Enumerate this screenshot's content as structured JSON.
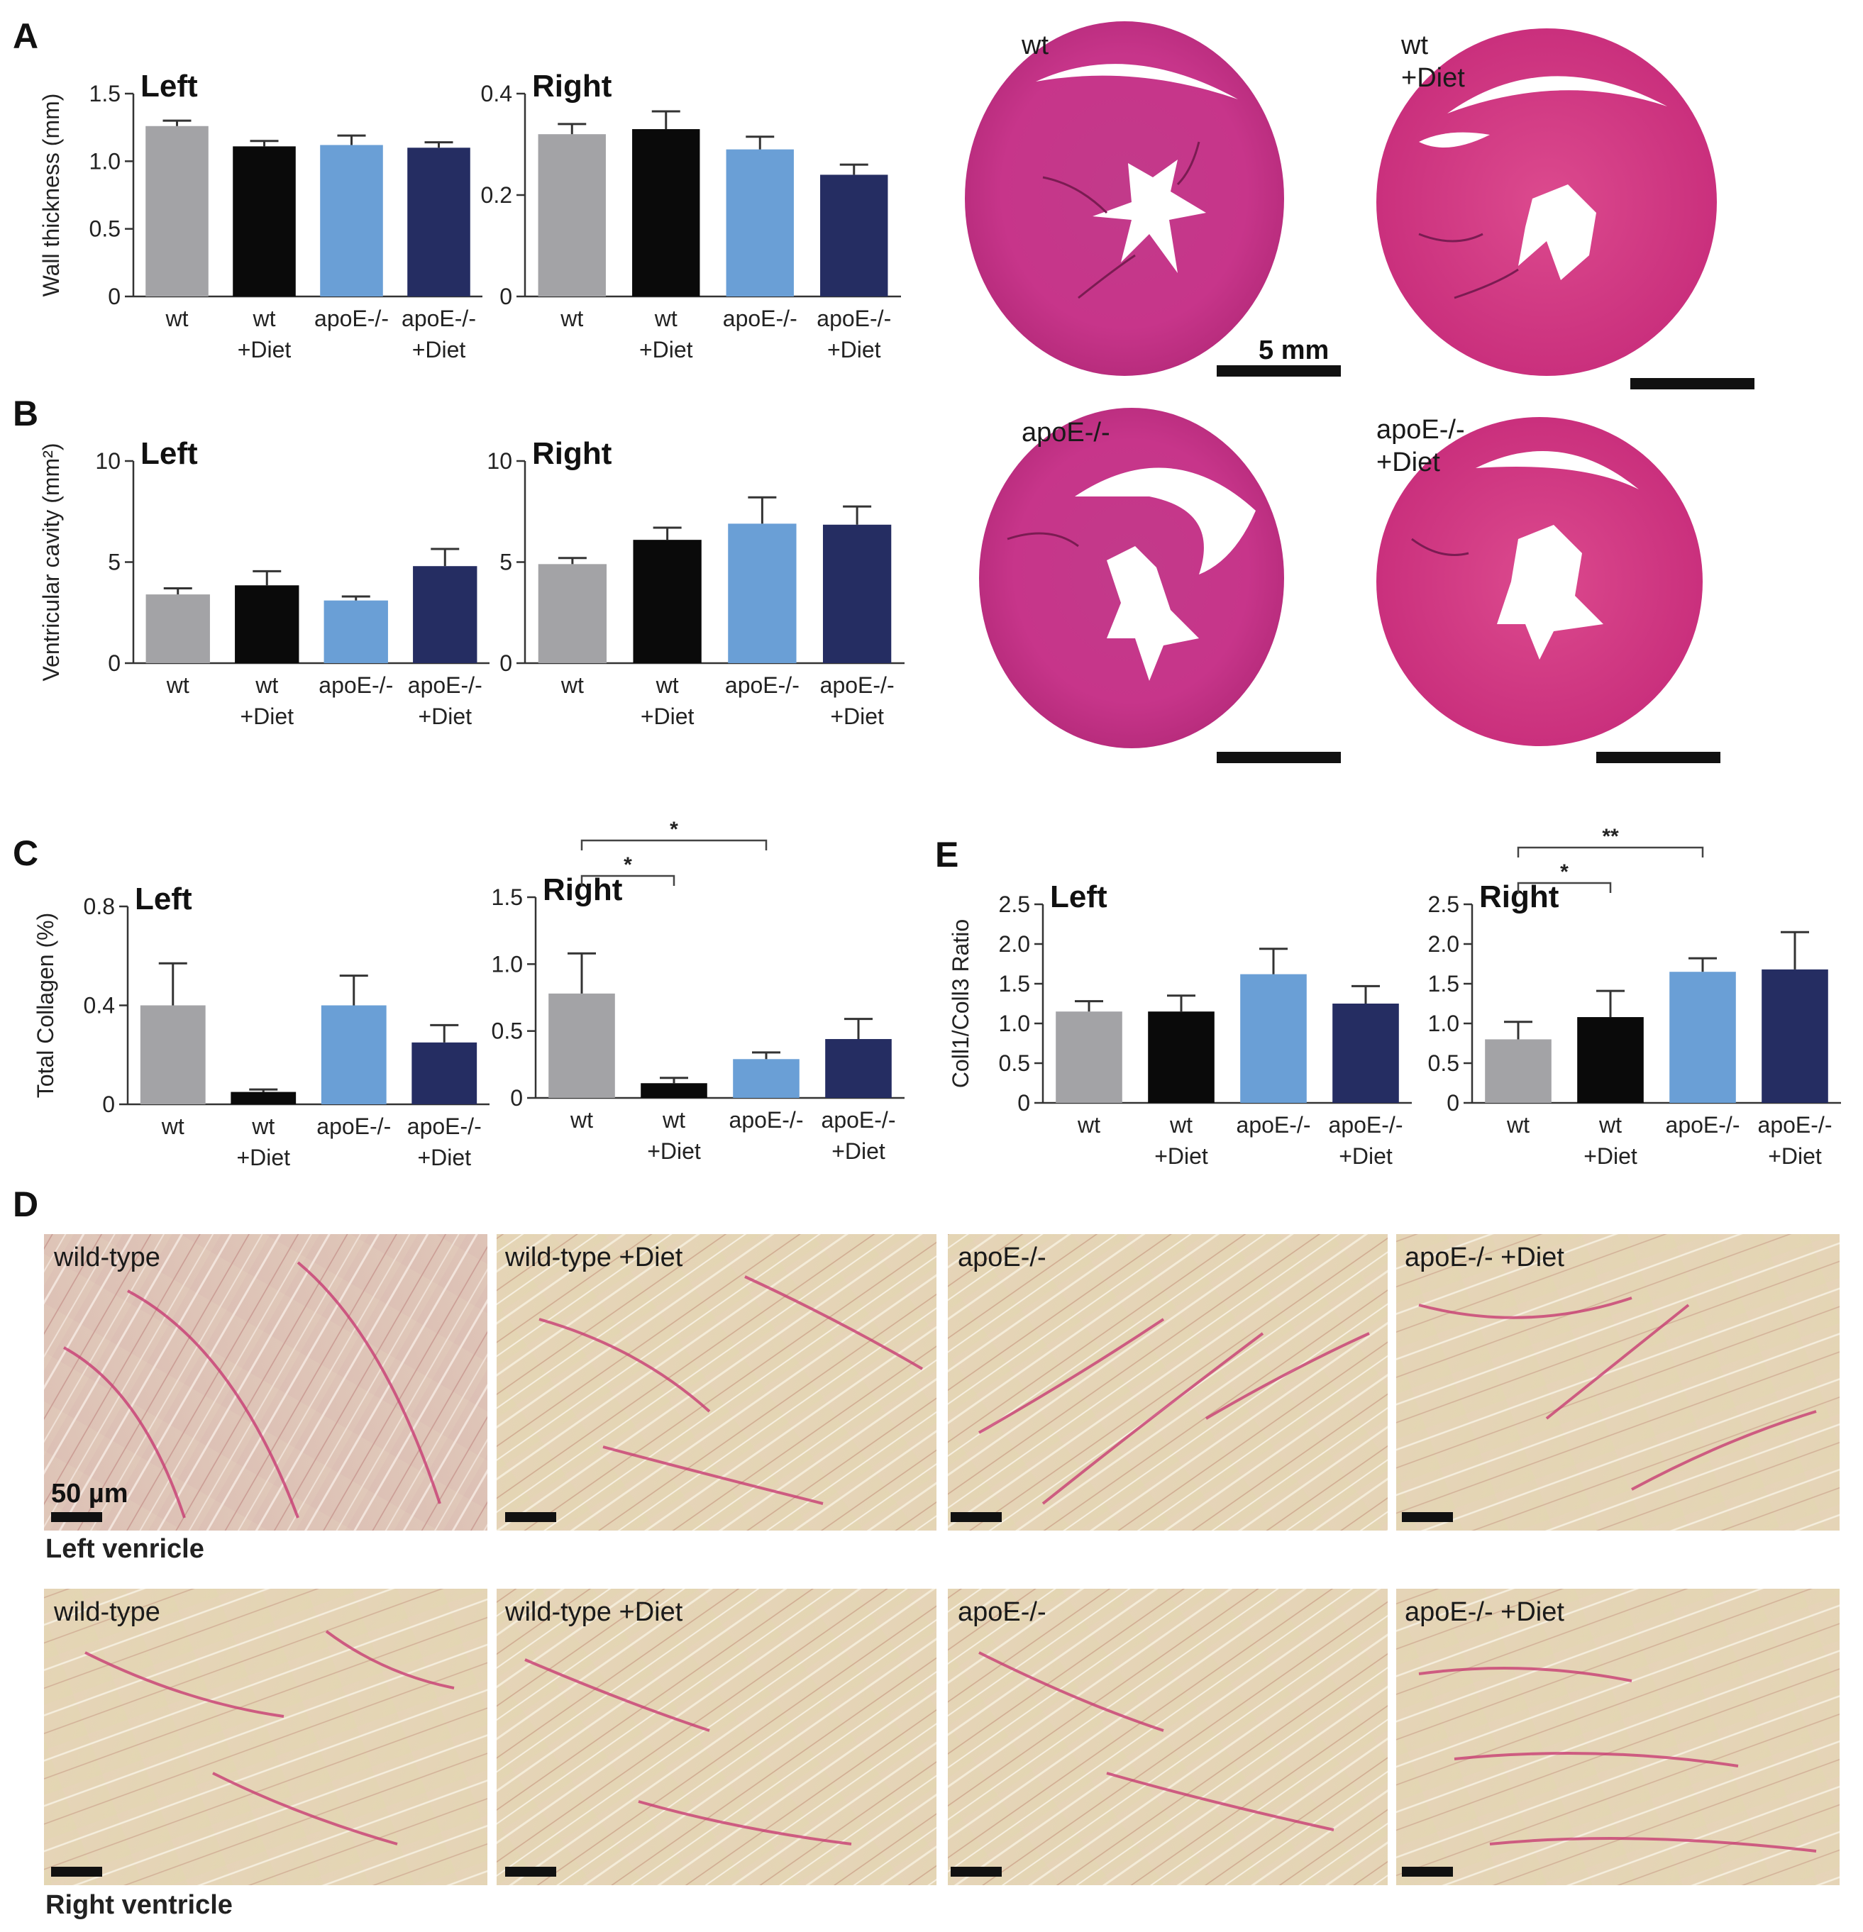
{
  "colors": {
    "wt": "#a3a3a6",
    "wt_diet": "#0a0a0a",
    "apoe": "#6a9fd6",
    "apoe_diet": "#252d62"
  },
  "chart_data": [
    {
      "id": "A-left",
      "panel": "A",
      "type": "bar",
      "title": "Left",
      "ylabel": "Wall thickness (mm)",
      "ylim": [
        0,
        1.5
      ],
      "yticks": [
        "0",
        "0.5",
        "1.0",
        "1.5"
      ],
      "categories": [
        "wt",
        "wt +Diet",
        "apoE-/-",
        "apoE-/- +Diet"
      ],
      "values": [
        1.26,
        1.11,
        1.12,
        1.1
      ],
      "errors": [
        0.04,
        0.04,
        0.07,
        0.04
      ],
      "significance": []
    },
    {
      "id": "A-right",
      "panel": "",
      "type": "bar",
      "title": "Right",
      "ylabel": "",
      "ylim": [
        0,
        0.4
      ],
      "yticks": [
        "0",
        "0.2",
        "0.4"
      ],
      "categories": [
        "wt",
        "wt +Diet",
        "apoE-/-",
        "apoE-/- +Diet"
      ],
      "values": [
        0.32,
        0.33,
        0.29,
        0.24
      ],
      "errors": [
        0.02,
        0.035,
        0.025,
        0.02
      ],
      "significance": []
    },
    {
      "id": "B-left",
      "panel": "B",
      "type": "bar",
      "title": "Left",
      "ylabel": "Ventricular cavity (mm²)",
      "ylim": [
        0,
        10
      ],
      "yticks": [
        "0",
        "5",
        "10"
      ],
      "categories": [
        "wt",
        "wt +Diet",
        "apoE-/-",
        "apoE-/- +Diet"
      ],
      "values": [
        3.4,
        3.85,
        3.1,
        4.8
      ],
      "errors": [
        0.3,
        0.7,
        0.2,
        0.85
      ],
      "significance": []
    },
    {
      "id": "B-right",
      "panel": "",
      "type": "bar",
      "title": "Right",
      "ylabel": "",
      "ylim": [
        0,
        10
      ],
      "yticks": [
        "0",
        "5",
        "10"
      ],
      "categories": [
        "wt",
        "wt +Diet",
        "apoE-/-",
        "apoE-/- +Diet"
      ],
      "values": [
        4.9,
        6.1,
        6.9,
        6.85
      ],
      "errors": [
        0.3,
        0.6,
        1.3,
        0.9
      ],
      "significance": []
    },
    {
      "id": "C-left",
      "panel": "C",
      "type": "bar",
      "title": "Left",
      "ylabel": "Total Collagen (%)",
      "ylim": [
        0,
        0.8
      ],
      "yticks": [
        "0",
        "0.4",
        "0.8"
      ],
      "categories": [
        "wt",
        "wt +Diet",
        "apoE-/-",
        "apoE-/- +Diet"
      ],
      "values": [
        0.4,
        0.05,
        0.4,
        0.25
      ],
      "errors": [
        0.17,
        0.01,
        0.12,
        0.07
      ],
      "significance": []
    },
    {
      "id": "C-right",
      "panel": "",
      "type": "bar",
      "title": "Right",
      "ylabel": "",
      "ylim": [
        0,
        1.5
      ],
      "yticks": [
        "0",
        "0.5",
        "1.0",
        "1.5"
      ],
      "categories": [
        "wt",
        "wt +Diet",
        "apoE-/-",
        "apoE-/- +Diet"
      ],
      "values": [
        0.78,
        0.11,
        0.29,
        0.44
      ],
      "errors": [
        0.3,
        0.04,
        0.05,
        0.15
      ],
      "significance": [
        {
          "from": 0,
          "to": 1,
          "label": "*"
        },
        {
          "from": 0,
          "to": 2,
          "label": "*"
        }
      ]
    },
    {
      "id": "E-left",
      "panel": "E",
      "type": "bar",
      "title": "Left",
      "ylabel": "Coll1/Coll3 Ratio",
      "ylim": [
        0,
        2.5
      ],
      "yticks": [
        "0",
        "0.5",
        "1.0",
        "1.5",
        "2.0",
        "2.5"
      ],
      "categories": [
        "wt",
        "wt +Diet",
        "apoE-/-",
        "apoE-/- +Diet"
      ],
      "values": [
        1.15,
        1.15,
        1.62,
        1.25
      ],
      "errors": [
        0.13,
        0.2,
        0.32,
        0.22
      ],
      "significance": []
    },
    {
      "id": "E-right",
      "panel": "",
      "type": "bar",
      "title": "Right",
      "ylabel": "",
      "ylim": [
        0,
        2.5
      ],
      "yticks": [
        "0",
        "0.5",
        "1.0",
        "1.5",
        "2.0",
        "2.5"
      ],
      "categories": [
        "wt",
        "wt +Diet",
        "apoE-/-",
        "apoE-/- +Diet"
      ],
      "values": [
        0.8,
        1.08,
        1.65,
        1.68
      ],
      "errors": [
        0.22,
        0.33,
        0.17,
        0.47
      ],
      "significance": [
        {
          "from": 0,
          "to": 1,
          "label": "*"
        },
        {
          "from": 0,
          "to": 2,
          "label": "**"
        }
      ]
    }
  ],
  "heart_images": {
    "labels": {
      "wt": "wt",
      "wt_diet_1": "wt",
      "wt_diet_2": "+Diet",
      "apoe": "apoE-/-",
      "apoe_diet_1": "apoE-/-",
      "apoe_diet_2": "+Diet"
    },
    "scale_label": "5 mm"
  },
  "panel_d": {
    "letter": "D",
    "columns": [
      "wild-type",
      "wild-type +Diet",
      "apoE-/-",
      "apoE-/- +Diet"
    ],
    "rows": [
      "Left venricle",
      "Right ventricle"
    ],
    "scale_label": "50 µm"
  }
}
